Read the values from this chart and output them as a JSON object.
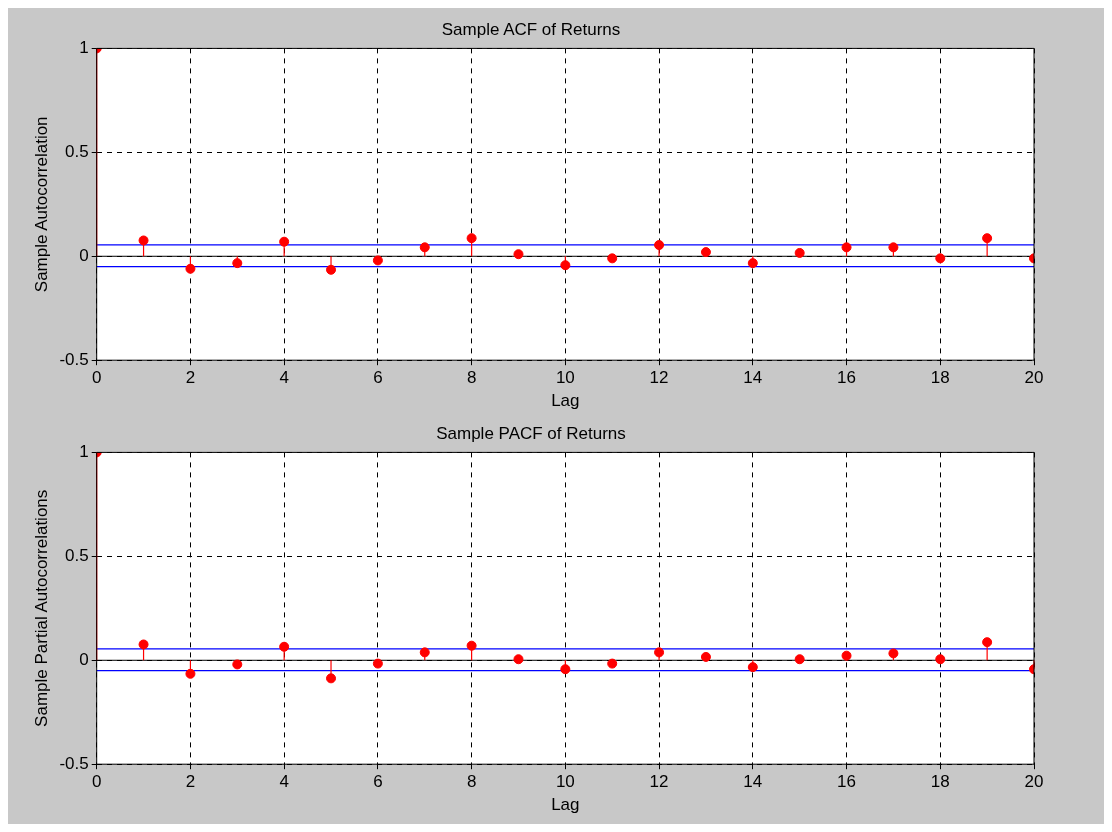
{
  "chart_data": [
    {
      "type": "lollipop",
      "title": "Sample ACF of Returns",
      "xlabel": "Lag",
      "ylabel": "Sample Autocorrelation",
      "x": [
        0,
        1,
        2,
        3,
        4,
        5,
        6,
        7,
        8,
        9,
        10,
        11,
        12,
        13,
        14,
        15,
        16,
        17,
        18,
        19,
        20
      ],
      "series": [
        {
          "color": "#ff0000",
          "values": [
            1,
            0.076,
            -0.06,
            -0.033,
            0.07,
            -0.065,
            -0.02,
            0.043,
            0.087,
            0.01,
            -0.043,
            -0.01,
            0.054,
            0.02,
            -0.033,
            0.016,
            0.043,
            0.043,
            -0.01,
            0.087,
            -0.01
          ]
        }
      ],
      "xlim": [
        0,
        20
      ],
      "ylim": [
        -0.5,
        1
      ],
      "xticks": [
        0,
        2,
        4,
        6,
        8,
        10,
        12,
        14,
        16,
        18,
        20
      ],
      "yticks": [
        -0.5,
        0,
        0.5,
        1
      ],
      "grid": true,
      "marker": "circle",
      "ref_lines": [
        {
          "axis": "y",
          "value": 0.055,
          "color": "#0000ff"
        },
        {
          "axis": "y",
          "value": -0.05,
          "color": "#0000ff"
        }
      ]
    },
    {
      "type": "lollipop",
      "title": "Sample PACF of Returns",
      "xlabel": "Lag",
      "ylabel": "Sample Partial Autocorrelations",
      "x": [
        0,
        1,
        2,
        3,
        4,
        5,
        6,
        7,
        8,
        9,
        10,
        11,
        12,
        13,
        14,
        15,
        16,
        17,
        18,
        19,
        20
      ],
      "series": [
        {
          "color": "#ff0000",
          "values": [
            1,
            0.076,
            -0.065,
            -0.02,
            0.065,
            -0.087,
            -0.016,
            0.038,
            0.07,
            0.005,
            -0.043,
            -0.016,
            0.038,
            0.016,
            -0.033,
            0.005,
            0.022,
            0.033,
            0.005,
            0.087,
            -0.043
          ]
        }
      ],
      "xlim": [
        0,
        20
      ],
      "ylim": [
        -0.5,
        1
      ],
      "xticks": [
        0,
        2,
        4,
        6,
        8,
        10,
        12,
        14,
        16,
        18,
        20
      ],
      "yticks": [
        -0.5,
        0,
        0.5,
        1
      ],
      "grid": true,
      "marker": "circle",
      "ref_lines": [
        {
          "axis": "y",
          "value": 0.055,
          "color": "#0000ff"
        },
        {
          "axis": "y",
          "value": -0.05,
          "color": "#0000ff"
        }
      ]
    }
  ]
}
